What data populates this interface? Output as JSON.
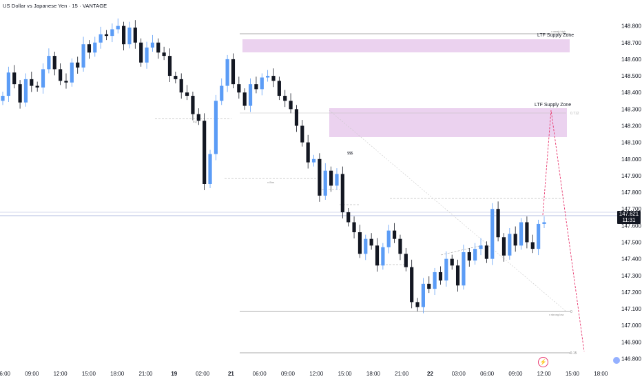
{
  "header": {
    "title": "US Dollar vs Japanese Yen · 15 · VANTAGE"
  },
  "price_tag": {
    "price": "147.621",
    "countdown": "11:31"
  },
  "annotations": {
    "supply_zone_1": "LTF Supply Zone",
    "supply_zone_2": "LTF Supply Zone",
    "weak_high": "x weak high",
    "fib_top": "0.712",
    "fib_zero": "0",
    "fib_neg": "-0.15",
    "x_bos": "x-Bos",
    "strong_low": "x strong low",
    "eq": "EQ",
    "triple": "$$$"
  },
  "icons": {
    "event": "lightning-icon",
    "flag": "flag-icon"
  },
  "colors": {
    "up": "#5b9cf6",
    "down": "#131722",
    "zone": "#e4c3ea",
    "projection": "#e8366d",
    "price_line": "#9aa8d6"
  },
  "chart_data": {
    "type": "candlestick",
    "title": "US Dollar vs Japanese Yen · 15 · VANTAGE",
    "ylim": [
      146.8,
      148.9
    ],
    "y_ticks": [
      "148.800",
      "148.700",
      "148.600",
      "148.500",
      "148.400",
      "148.300",
      "148.200",
      "148.100",
      "148.000",
      "147.900",
      "147.800",
      "147.700",
      "147.600",
      "147.500",
      "147.400",
      "147.300",
      "147.200",
      "147.100",
      "147.000",
      "146.900",
      "146.800"
    ],
    "x_ticks": [
      "06:00",
      "09:00",
      "12:00",
      "15:00",
      "18:00",
      "21:00",
      "19",
      "02:00",
      "21",
      "06:00",
      "09:00",
      "12:00",
      "15:00",
      "18:00",
      "21:00",
      "22",
      "03:00",
      "06:00",
      "09:00",
      "12:00",
      "15:00",
      "18:00"
    ],
    "last_price": 147.621,
    "zones": [
      {
        "label": "LTF Supply Zone",
        "top": 148.63,
        "bottom": 148.555
      },
      {
        "label": "LTF Supply Zone",
        "top": 148.235,
        "bottom": 148.065
      }
    ],
    "levels": [
      {
        "label": "x weak high",
        "value": 148.665
      },
      {
        "label": "0.712",
        "value": 148.205
      },
      {
        "label": "0",
        "value": 147.065
      },
      {
        "label": "-0.15",
        "value": 146.835
      }
    ],
    "series": [
      {
        "values": [
          148.38,
          148.52,
          148.45,
          148.34,
          148.48,
          148.44,
          148.43,
          148.54,
          148.62,
          148.54,
          148.47,
          148.46,
          148.58,
          148.55,
          148.69,
          148.64,
          148.7,
          148.75,
          148.74,
          148.78,
          148.8,
          148.69,
          148.79,
          148.7,
          148.58,
          148.67,
          148.7,
          148.64,
          148.62,
          148.5,
          148.48,
          148.4,
          148.38,
          148.27,
          148.23,
          147.85,
          148.03,
          148.35,
          148.44,
          148.6,
          148.45,
          148.4,
          148.32,
          148.45,
          148.42,
          148.49,
          148.5,
          148.47,
          148.38,
          148.35,
          148.3,
          148.2,
          148.1,
          147.98,
          148.0,
          147.78,
          147.93,
          147.84,
          147.91,
          147.68,
          147.62,
          147.56,
          147.43,
          147.52,
          147.48,
          147.36,
          147.47,
          147.57,
          147.52,
          147.43,
          147.35,
          147.14,
          147.11,
          147.25,
          147.22,
          147.32,
          147.27,
          147.4,
          147.36,
          147.24,
          147.44,
          147.39,
          147.46,
          147.48,
          147.4,
          147.7,
          147.53,
          147.42,
          147.55,
          147.48,
          147.62,
          147.5,
          147.46,
          147.61,
          147.62
        ]
      }
    ]
  }
}
